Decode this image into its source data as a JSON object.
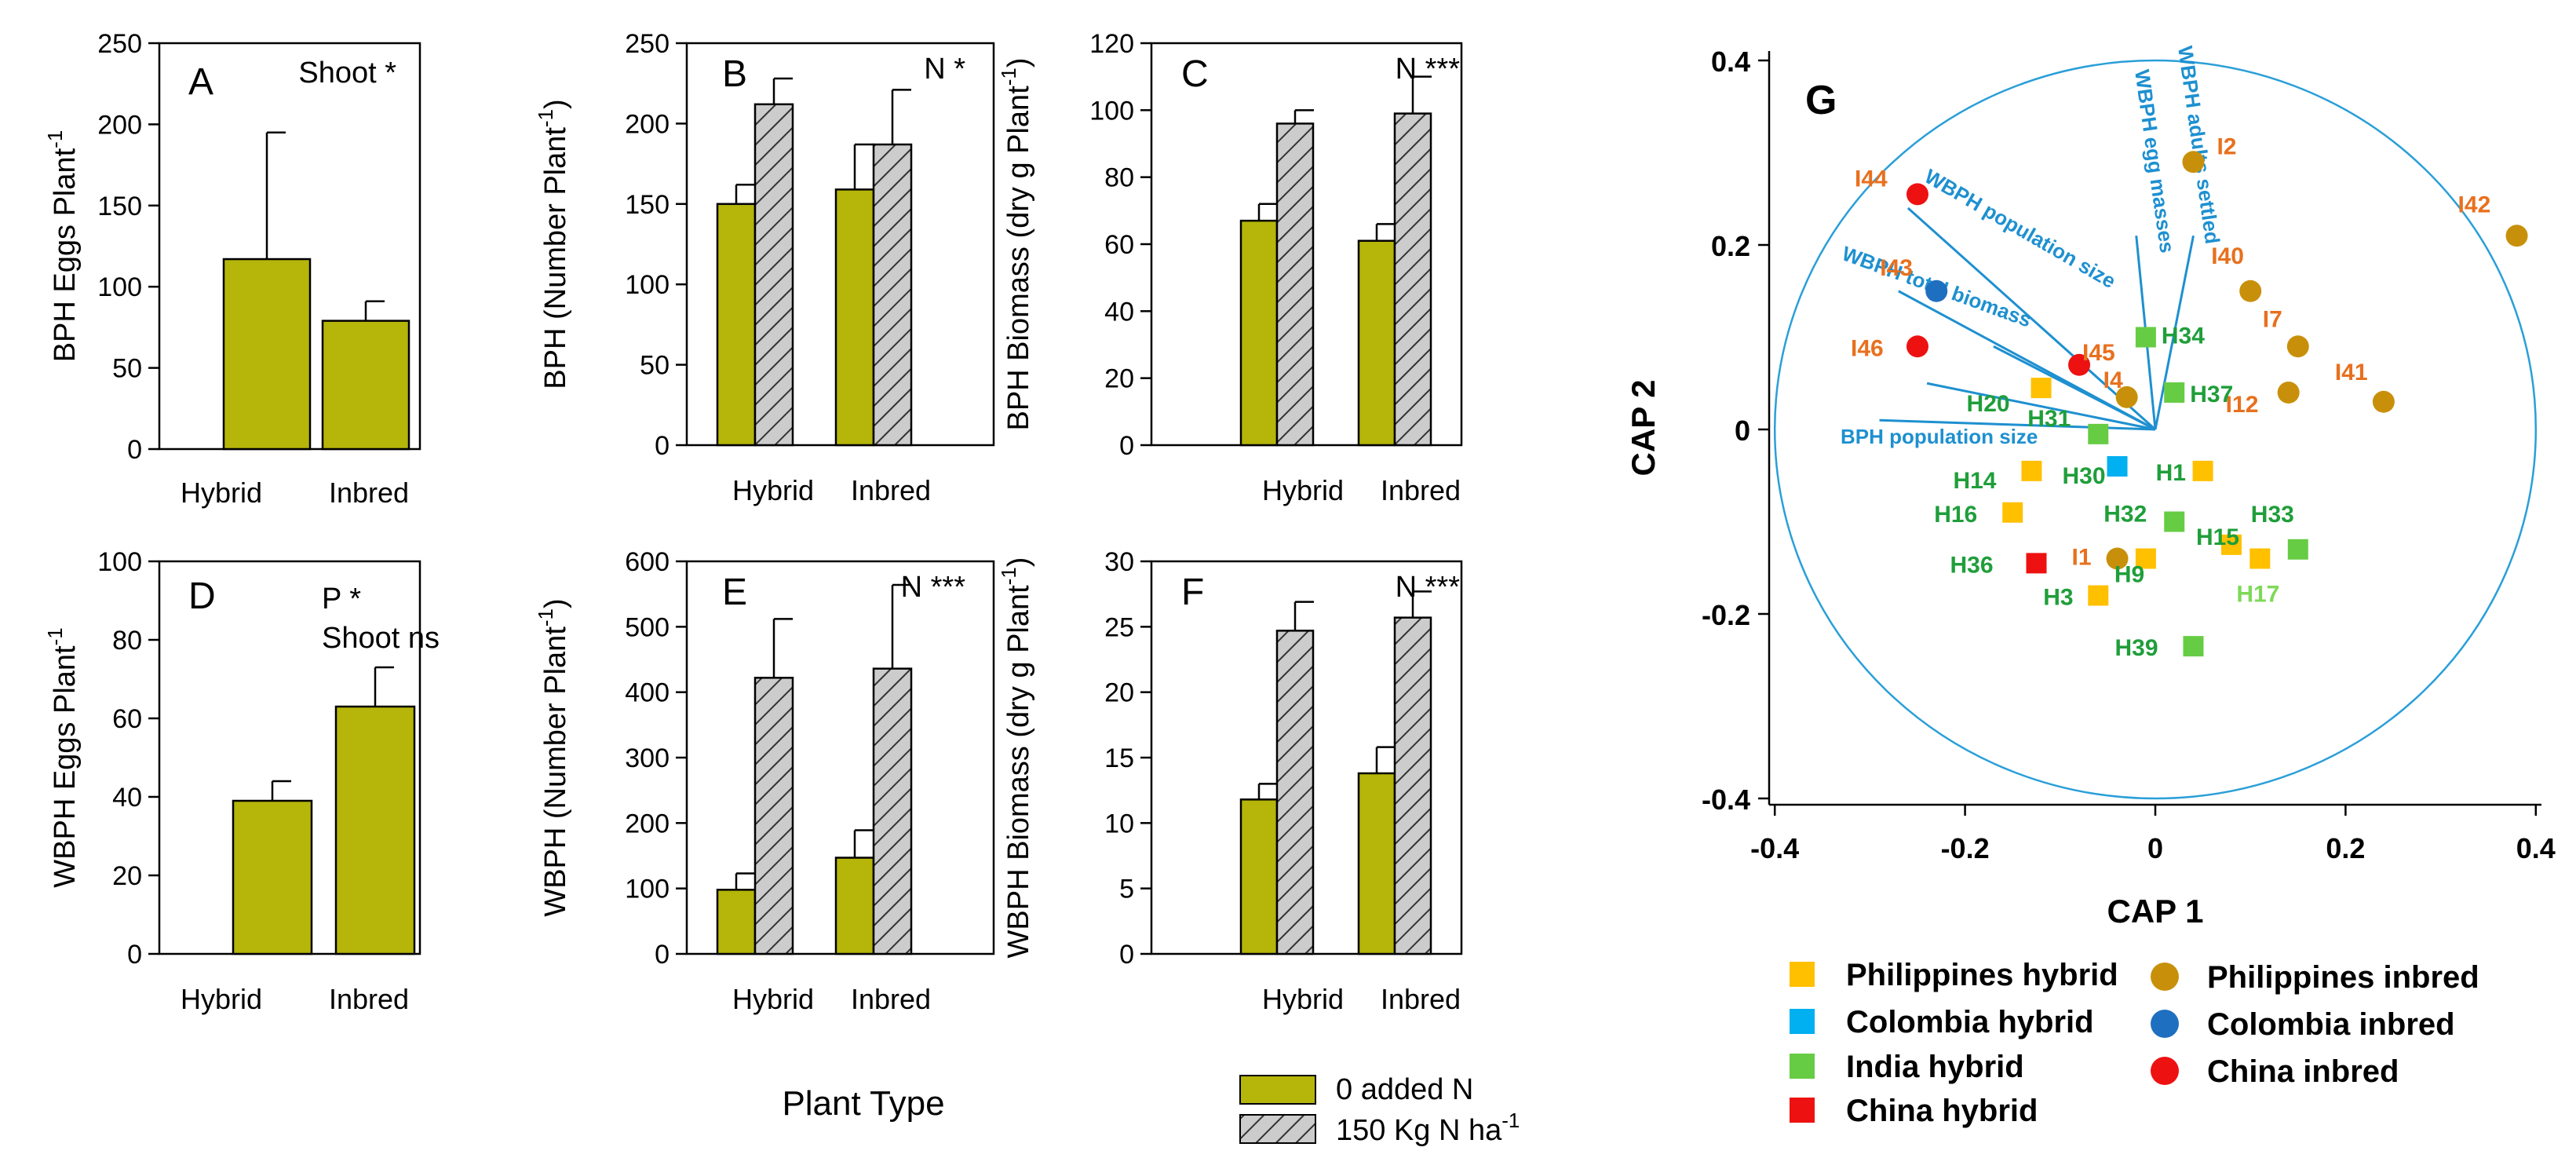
{
  "colors": {
    "bar_zero": "#b5b50a",
    "bar_n": "#cccccc",
    "circle": "#2a9fd8",
    "biplot": "#1e90d0",
    "ph_hybrid": "#ffc000",
    "co_hybrid": "#00b0f0",
    "in_hybrid": "#66cc44",
    "cn_hybrid": "#ee1111",
    "ph_inbred": "#c8900a",
    "co_inbred": "#1f6fc0",
    "cn_inbred": "#ee1111",
    "lbl_hybrid": "#1f9e3a",
    "lbl_inbred": "#e8701e",
    "lbl_h17": "#7ed957"
  },
  "shared": {
    "x_label": "Plant Type",
    "legend_zero": "0 added N",
    "legend_n_main": "150 Kg N ha",
    "legend_n_sup": "-1"
  },
  "chart_data": [
    {
      "id": "A",
      "type": "bar",
      "letter": "A",
      "annotation": [
        "Shoot *"
      ],
      "ylabel_main": "BPH Eggs Plant",
      "ylabel_sup": "-1",
      "categories": [
        "Hybrid",
        "Inbred"
      ],
      "ylim": [
        0,
        250
      ],
      "ticks": [
        0,
        50,
        100,
        150,
        200,
        250
      ],
      "series": [
        {
          "name": "0 added N",
          "values": [
            117,
            79
          ],
          "err": [
            78,
            12
          ]
        }
      ]
    },
    {
      "id": "B",
      "type": "bar",
      "letter": "B",
      "annotation": [
        "N *"
      ],
      "ylabel_main": "BPH (Number Plant",
      "ylabel_sup": "-1",
      "ylabel_end": ")",
      "categories": [
        "Hybrid",
        "Inbred"
      ],
      "ylim": [
        0,
        250
      ],
      "ticks": [
        0,
        50,
        100,
        150,
        200,
        250
      ],
      "series": [
        {
          "name": "0 added N",
          "values": [
            150,
            159
          ],
          "err": [
            12,
            28
          ]
        },
        {
          "name": "150 Kg N ha-1",
          "values": [
            212,
            187
          ],
          "err": [
            16,
            34
          ]
        }
      ]
    },
    {
      "id": "C",
      "type": "bar",
      "letter": "C",
      "annotation": [
        "N ***"
      ],
      "ylabel_main": "BPH Biomass (dry g Plant",
      "ylabel_sup": "-1",
      "ylabel_end": ")",
      "categories": [
        "Hybrid",
        "Inbred"
      ],
      "ylim": [
        0,
        120
      ],
      "ticks": [
        0,
        20,
        40,
        60,
        80,
        100,
        120
      ],
      "series": [
        {
          "name": "0 added N",
          "values": [
            67,
            61
          ],
          "err": [
            5,
            5
          ]
        },
        {
          "name": "150 Kg N ha-1",
          "values": [
            96,
            99
          ],
          "err": [
            4,
            11
          ]
        }
      ]
    },
    {
      "id": "D",
      "type": "bar",
      "letter": "D",
      "annotation": [
        "P *",
        "Shoot ns"
      ],
      "ylabel_main": "WBPH Eggs Plant",
      "ylabel_sup": "-1",
      "categories": [
        "Hybrid",
        "Inbred"
      ],
      "ylim": [
        0,
        100
      ],
      "ticks": [
        0,
        20,
        40,
        60,
        80,
        100
      ],
      "series": [
        {
          "name": "0 added N",
          "values": [
            39,
            63
          ],
          "err": [
            5,
            10
          ]
        }
      ]
    },
    {
      "id": "E",
      "type": "bar",
      "letter": "E",
      "annotation": [
        "N ***"
      ],
      "ylabel_main": "WBPH (Number Plant",
      "ylabel_sup": "-1",
      "ylabel_end": ")",
      "categories": [
        "Hybrid",
        "Inbred"
      ],
      "ylim": [
        0,
        600
      ],
      "ticks": [
        0,
        100,
        200,
        300,
        400,
        500,
        600
      ],
      "series": [
        {
          "name": "0 added N",
          "values": [
            98,
            147
          ],
          "err": [
            25,
            42
          ]
        },
        {
          "name": "150 Kg N ha-1",
          "values": [
            422,
            436
          ],
          "err": [
            90,
            128
          ]
        }
      ]
    },
    {
      "id": "F",
      "type": "bar",
      "letter": "F",
      "annotation": [
        "N ***"
      ],
      "ylabel_main": "WBPH Biomass (dry g Plant",
      "ylabel_sup": "-1",
      "ylabel_end": ")",
      "categories": [
        "Hybrid",
        "Inbred"
      ],
      "ylim": [
        0,
        30
      ],
      "ticks": [
        0,
        5,
        10,
        15,
        20,
        25,
        30
      ],
      "series": [
        {
          "name": "0 added N",
          "values": [
            11.8,
            13.8
          ],
          "err": [
            1.2,
            2.0
          ]
        },
        {
          "name": "150 Kg N ha-1",
          "values": [
            24.7,
            25.7
          ],
          "err": [
            2.2,
            2.0
          ]
        }
      ]
    },
    {
      "id": "G",
      "type": "scatter",
      "letter": "G",
      "xlabel": "CAP 1",
      "ylabel": "CAP 2",
      "xlim": [
        -0.4,
        0.4
      ],
      "ylim": [
        -0.4,
        0.4
      ],
      "xticks": [
        "-0.4",
        "-0.2",
        "0",
        "0.2",
        "0.4"
      ],
      "yticks": [
        "0.4",
        "0.2",
        "0",
        "-0.2",
        "-0.4"
      ],
      "circle_radius": 0.4,
      "vectors": [
        {
          "label": "WBPH adults settled",
          "x": 0.04,
          "y": 0.21
        },
        {
          "label": "WBPH egg masses",
          "x": -0.02,
          "y": 0.21
        },
        {
          "label": "WBPH population size",
          "x": -0.26,
          "y": 0.24
        },
        {
          "label": "WBPH total biomass",
          "x": -0.27,
          "y": 0.15
        },
        {
          "label": "BPH population size",
          "x": -0.29,
          "y": 0.01
        },
        {
          "label": "",
          "x": -0.17,
          "y": 0.09
        },
        {
          "label": "",
          "x": -0.24,
          "y": 0.05
        }
      ],
      "points": [
        {
          "label": "I2",
          "group": "ph_inbred",
          "x": 0.04,
          "y": 0.29
        },
        {
          "label": "I42",
          "group": "ph_inbred",
          "x": 0.38,
          "y": 0.21
        },
        {
          "label": "I40",
          "group": "ph_inbred",
          "x": 0.1,
          "y": 0.15
        },
        {
          "label": "I7",
          "group": "ph_inbred",
          "x": 0.15,
          "y": 0.09
        },
        {
          "label": "I12",
          "group": "ph_inbred",
          "x": 0.14,
          "y": 0.04
        },
        {
          "label": "I41",
          "group": "ph_inbred",
          "x": 0.24,
          "y": 0.03
        },
        {
          "label": "I4",
          "group": "ph_inbred",
          "x": -0.03,
          "y": 0.035
        },
        {
          "label": "I1",
          "group": "ph_inbred",
          "x": -0.04,
          "y": -0.14
        },
        {
          "label": "I44",
          "group": "cn_inbred",
          "x": -0.25,
          "y": 0.255
        },
        {
          "label": "I46",
          "group": "cn_inbred",
          "x": -0.25,
          "y": 0.09
        },
        {
          "label": "I45",
          "group": "cn_inbred",
          "x": -0.08,
          "y": 0.07
        },
        {
          "label": "I43",
          "group": "co_inbred",
          "x": -0.23,
          "y": 0.15
        },
        {
          "label": "H34",
          "group": "in_hybrid",
          "x": -0.01,
          "y": 0.1
        },
        {
          "label": "H37",
          "group": "in_hybrid",
          "x": 0.02,
          "y": 0.04
        },
        {
          "label": "H31",
          "group": "in_hybrid",
          "x": -0.06,
          "y": -0.005
        },
        {
          "label": "H32",
          "group": "in_hybrid",
          "x": 0.02,
          "y": -0.1
        },
        {
          "label": "H33",
          "group": "in_hybrid",
          "x": 0.15,
          "y": -0.13
        },
        {
          "label": "H39",
          "group": "in_hybrid",
          "x": 0.04,
          "y": -0.235
        },
        {
          "label": "H20",
          "group": "ph_hybrid",
          "x": -0.12,
          "y": 0.045
        },
        {
          "label": "H1",
          "group": "ph_hybrid",
          "x": 0.05,
          "y": -0.045
        },
        {
          "label": "H14",
          "group": "ph_hybrid",
          "x": -0.13,
          "y": -0.045
        },
        {
          "label": "H16",
          "group": "ph_hybrid",
          "x": -0.15,
          "y": -0.09
        },
        {
          "label": "H15",
          "group": "ph_hybrid",
          "x": 0.08,
          "y": -0.125
        },
        {
          "label": "H17",
          "group": "ph_hybrid",
          "x": 0.11,
          "y": -0.14
        },
        {
          "label": "H9",
          "group": "ph_hybrid",
          "x": -0.01,
          "y": -0.14
        },
        {
          "label": "H3",
          "group": "ph_hybrid",
          "x": -0.06,
          "y": -0.18
        },
        {
          "label": "H30",
          "group": "co_hybrid",
          "x": -0.04,
          "y": -0.04
        },
        {
          "label": "H36",
          "group": "cn_hybrid",
          "x": -0.125,
          "y": -0.145
        }
      ],
      "legend": [
        {
          "group": "ph_hybrid",
          "label": "Philippines hybrid",
          "shape": "square"
        },
        {
          "group": "co_hybrid",
          "label": "Colombia hybrid",
          "shape": "square"
        },
        {
          "group": "in_hybrid",
          "label": "India hybrid",
          "shape": "square"
        },
        {
          "group": "cn_hybrid",
          "label": "China hybrid",
          "shape": "square"
        },
        {
          "group": "ph_inbred",
          "label": "Philippines inbred",
          "shape": "circle"
        },
        {
          "group": "co_inbred",
          "label": "Colombia inbred",
          "shape": "circle"
        },
        {
          "group": "cn_inbred",
          "label": "China inbred",
          "shape": "circle"
        }
      ]
    }
  ]
}
